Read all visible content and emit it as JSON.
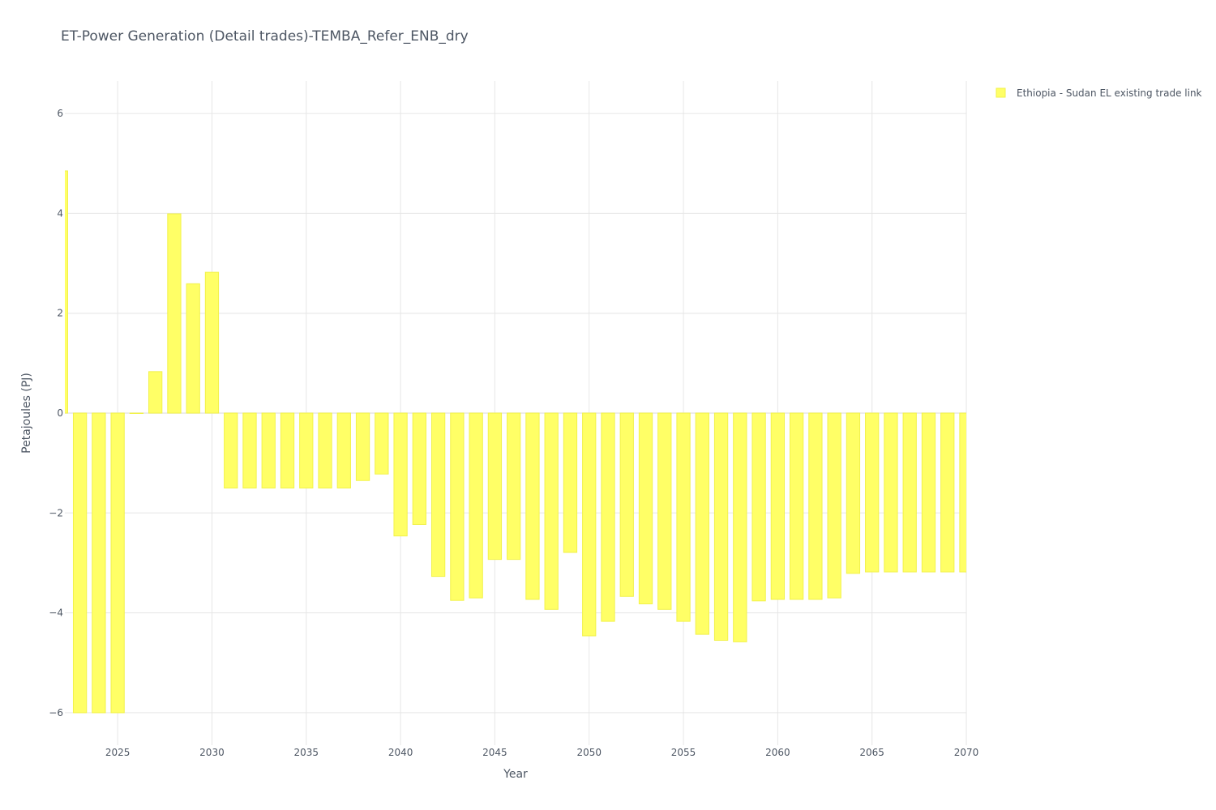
{
  "colors": {
    "bar_fill": "#ffff66",
    "bar_stroke": "#f2f24a",
    "grid": "#e6e6e6",
    "text": "#4d5663"
  },
  "chart_data": {
    "type": "bar",
    "title": "ET-Power Generation (Detail trades)-TEMBA_Refer_ENB_dry",
    "xlabel": "Year",
    "ylabel": "Petajoules (PJ)",
    "xlim": [
      2022.2,
      2070
    ],
    "ylim": [
      -6.65,
      6.65
    ],
    "x_ticks": [
      2025,
      2030,
      2035,
      2040,
      2045,
      2050,
      2055,
      2060,
      2065,
      2070
    ],
    "y_ticks": [
      6,
      4,
      2,
      0,
      -2,
      -4,
      -6
    ],
    "y_tick_labels": [
      "6",
      "4",
      "2",
      "0",
      "−2",
      "−4",
      "−6"
    ],
    "grid": true,
    "legend_position": "top-right",
    "series": [
      {
        "name": "Ethiopia - Sudan EL existing trade link",
        "x": [
          2022,
          2023,
          2024,
          2025,
          2026,
          2027,
          2028,
          2029,
          2030,
          2031,
          2032,
          2033,
          2034,
          2035,
          2036,
          2037,
          2038,
          2039,
          2040,
          2041,
          2042,
          2043,
          2044,
          2045,
          2046,
          2047,
          2048,
          2049,
          2050,
          2051,
          2052,
          2053,
          2054,
          2055,
          2056,
          2057,
          2058,
          2059,
          2060,
          2061,
          2062,
          2063,
          2064,
          2065,
          2066,
          2067,
          2068,
          2069,
          2070
        ],
        "values": [
          4.85,
          -6.0,
          -6.0,
          -6.0,
          0.0,
          0.83,
          3.99,
          2.59,
          2.82,
          -1.5,
          -1.5,
          -1.5,
          -1.5,
          -1.5,
          -1.5,
          -1.5,
          -1.35,
          -1.22,
          -2.46,
          -2.23,
          -3.27,
          -3.75,
          -3.7,
          -2.93,
          -2.93,
          -3.73,
          -3.93,
          -2.79,
          -4.46,
          -4.17,
          -3.67,
          -3.82,
          -3.93,
          -4.17,
          -4.43,
          -4.55,
          -4.58,
          -3.76,
          -3.73,
          -3.73,
          -3.73,
          -3.7,
          -3.21,
          -3.18,
          -3.18,
          -3.18,
          -3.18,
          -3.18,
          -3.18
        ]
      }
    ]
  }
}
